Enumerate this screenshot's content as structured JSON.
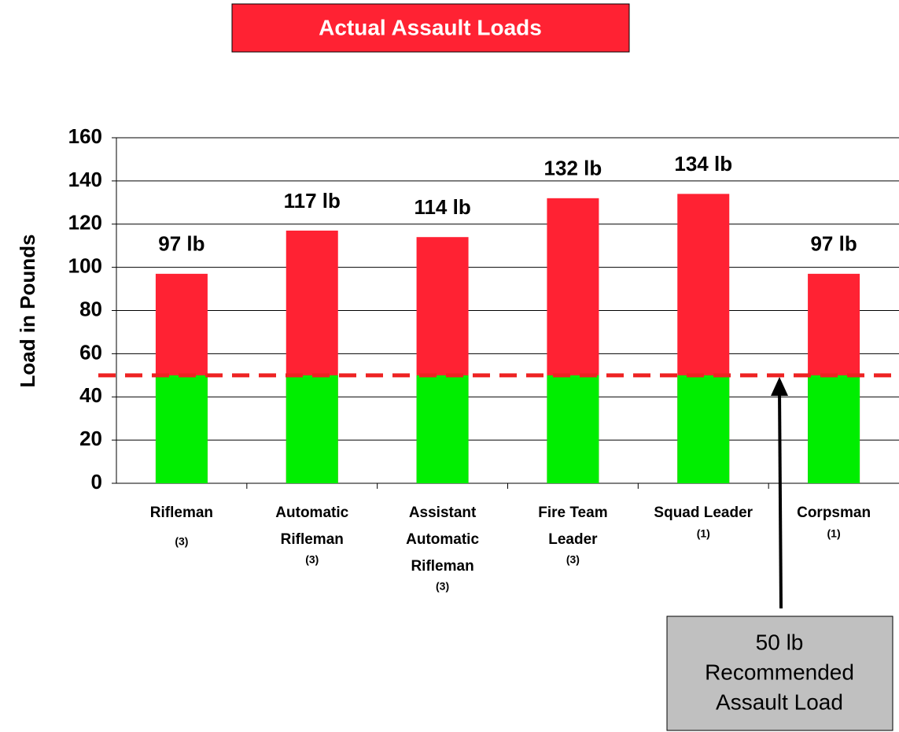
{
  "chart_data": {
    "type": "bar",
    "title": "Actual Assault Loads",
    "ylabel": "Load in Pounds",
    "categories": [
      [
        "Rifleman"
      ],
      [
        "Automatic",
        "Rifleman"
      ],
      [
        "Assistant",
        "Automatic",
        "Rifleman"
      ],
      [
        "Fire Team",
        "Leader"
      ],
      [
        "Squad Leader"
      ],
      [
        "Corpsman"
      ]
    ],
    "category_notes": [
      "(3)",
      "(3)",
      "(3)",
      "(3)",
      "(1)",
      "(1)"
    ],
    "values": [
      97,
      117,
      114,
      132,
      134,
      97
    ],
    "value_labels": [
      "97 lb",
      "117 lb",
      "114 lb",
      "132 lb",
      "134 lb",
      "97 lb"
    ],
    "color": "#ff2233",
    "base_color": "#00ee00",
    "reference": {
      "value": 50,
      "color": "#ee2222",
      "dashed": true
    },
    "annotation": [
      "50 lb",
      "Recommended",
      "Assault Load"
    ],
    "ylim": [
      0,
      160
    ],
    "yticks": [
      0,
      20,
      40,
      60,
      80,
      100,
      120,
      140,
      160
    ],
    "grid": true
  }
}
